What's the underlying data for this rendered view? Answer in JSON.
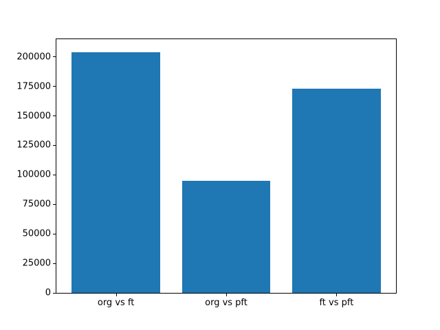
{
  "figure": {
    "background_color": "#ffffff",
    "axes_border_color": "#000000",
    "tick_color": "#000000",
    "text_color": "#000000"
  },
  "chart_data": {
    "type": "bar",
    "title": "",
    "xlabel": "",
    "ylabel": "",
    "categories": [
      "org vs ft",
      "org vs pft",
      "ft vs pft"
    ],
    "values": [
      204000,
      95000,
      173000
    ],
    "bar_color": "#1f77b4",
    "bar_width_fraction": 0.8,
    "xlim": [
      -0.54,
      2.54
    ],
    "ylim": [
      0,
      215000
    ],
    "ytick_step": 25000,
    "ytick_labels": [
      "0",
      "25000",
      "50000",
      "75000",
      "100000",
      "125000",
      "150000",
      "175000",
      "200000"
    ],
    "grid": false,
    "legend": null
  }
}
